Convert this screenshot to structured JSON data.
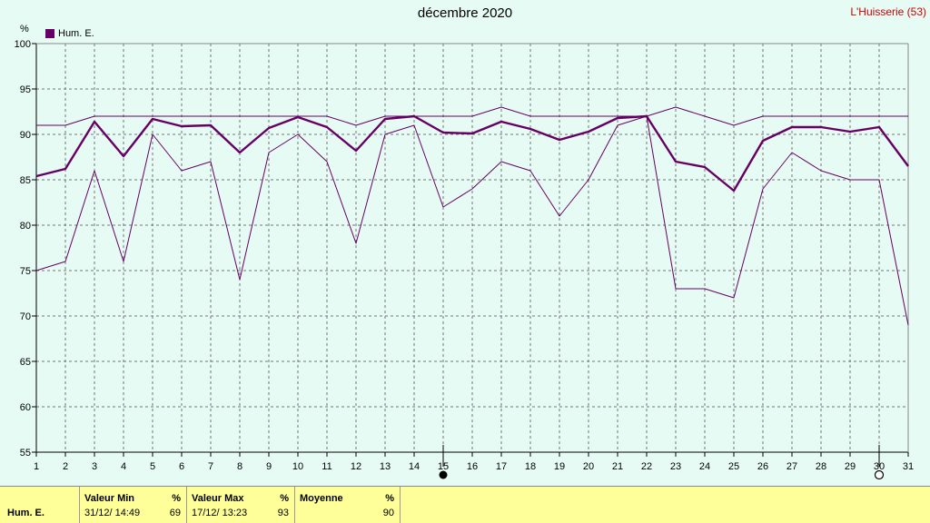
{
  "title": "décembre 2020",
  "station": "L'Huisserie (53)",
  "unit_label": "%",
  "legend": {
    "label": "Hum. E.",
    "color": "#660066"
  },
  "chart_data": {
    "type": "line",
    "x": [
      1,
      2,
      3,
      4,
      5,
      6,
      7,
      8,
      9,
      10,
      11,
      12,
      13,
      14,
      15,
      16,
      17,
      18,
      19,
      20,
      21,
      22,
      23,
      24,
      25,
      26,
      27,
      28,
      29,
      30,
      31
    ],
    "ylim": [
      55,
      100
    ],
    "yticks": [
      55,
      60,
      65,
      70,
      75,
      80,
      85,
      90,
      95,
      100
    ],
    "grid": true,
    "series": [
      {
        "name": "Hum. E.",
        "values": [
          91,
          91,
          92,
          92,
          92,
          92,
          92,
          92,
          92,
          92,
          92,
          91,
          92,
          92,
          92,
          92,
          93,
          92,
          92,
          92,
          92,
          92,
          93,
          92,
          91,
          92,
          92,
          92,
          92,
          92,
          92
        ]
      },
      {
        "name": "Hum. E.",
        "values": [
          85.4,
          86.2,
          91.4,
          87.6,
          91.7,
          90.9,
          91,
          88,
          90.7,
          91.9,
          90.8,
          88.2,
          91.7,
          92,
          90.2,
          90.1,
          91.4,
          90.6,
          89.4,
          90.3,
          91.8,
          92,
          87,
          86.4,
          83.8,
          89.3,
          90.8,
          90.8,
          90.3,
          90.8,
          86.5
        ]
      },
      {
        "name": "Hum. E.",
        "values": [
          75,
          76,
          86,
          76,
          90,
          86,
          87,
          74,
          88,
          90,
          87,
          78,
          90,
          91,
          82,
          84,
          87,
          86,
          81,
          85,
          91,
          92,
          73,
          73,
          72,
          84,
          88,
          86,
          85,
          85,
          69
        ]
      }
    ]
  },
  "markers": {
    "filled_day": 15,
    "hollow_day": 30
  },
  "footer": {
    "series_label": "Hum. E.",
    "min": {
      "header": "Valeur Min",
      "unit": "%",
      "date": "31/12/  14:49",
      "value": "69"
    },
    "max": {
      "header": "Valeur Max",
      "unit": "%",
      "date": "17/12/  13:23",
      "value": "93"
    },
    "avg": {
      "header": "Moyenne",
      "unit": "%",
      "value": "90"
    }
  }
}
